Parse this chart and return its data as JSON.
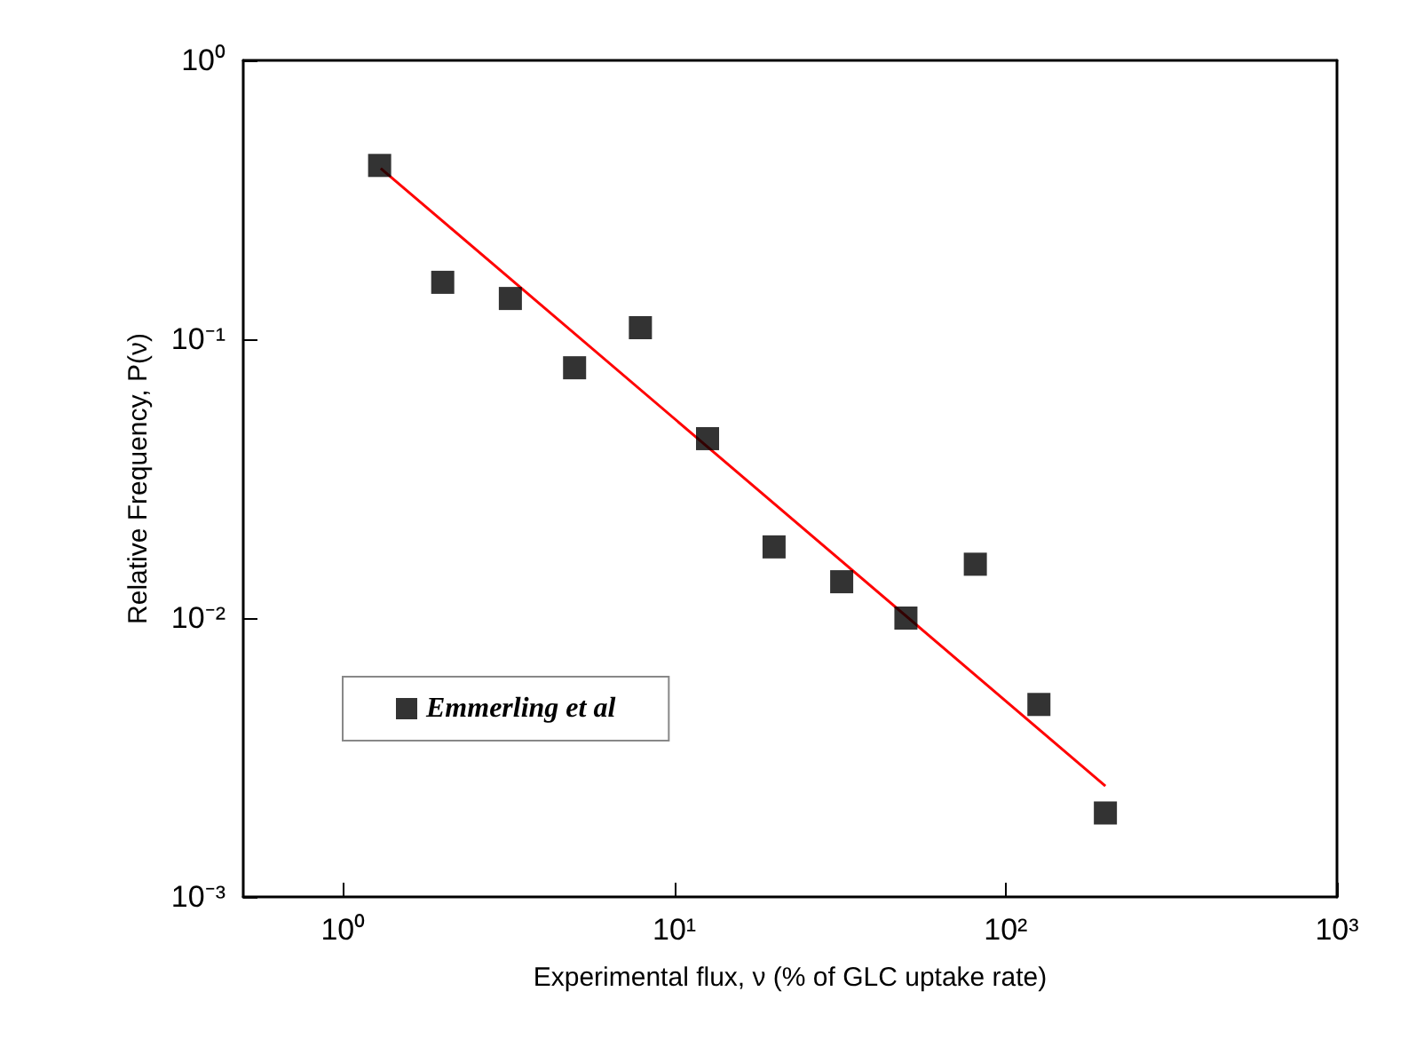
{
  "chart_data": {
    "type": "scatter",
    "xlabel": "Experimental flux, ν (% of GLC uptake rate)",
    "ylabel": "Relative Frequency, P(ν)",
    "log": "xy",
    "xlim": [
      0.5,
      1000
    ],
    "ylim": [
      0.001,
      1
    ],
    "xticks": [
      {
        "value": 1,
        "label": "10⁰"
      },
      {
        "value": 10,
        "label": "10¹"
      },
      {
        "value": 100,
        "label": "10²"
      },
      {
        "value": 1000,
        "label": "10³"
      }
    ],
    "yticks": [
      {
        "value": 0.001,
        "label": "10⁻³"
      },
      {
        "value": 0.01,
        "label": "10⁻²"
      },
      {
        "value": 0.1,
        "label": "10⁻¹"
      },
      {
        "value": 1,
        "label": "10⁰"
      }
    ],
    "grid": false,
    "legend": "bottom left",
    "marker": "square",
    "series": [
      {
        "name": "Emmerling et al",
        "color": "#000000",
        "x": [
          1.29,
          2.0,
          3.2,
          5.0,
          7.9,
          12.6,
          20,
          32,
          50,
          81,
          126,
          200
        ],
        "values": [
          0.42,
          0.16,
          0.14,
          0.079,
          0.11,
          0.044,
          0.018,
          0.0135,
          0.01,
          0.0156,
          0.0049,
          0.002
        ]
      },
      {
        "type": "line",
        "marker": "none",
        "color": "#ff0000",
        "x": [
          1.3,
          200
        ],
        "values": [
          0.41,
          0.0025
        ]
      }
    ]
  }
}
